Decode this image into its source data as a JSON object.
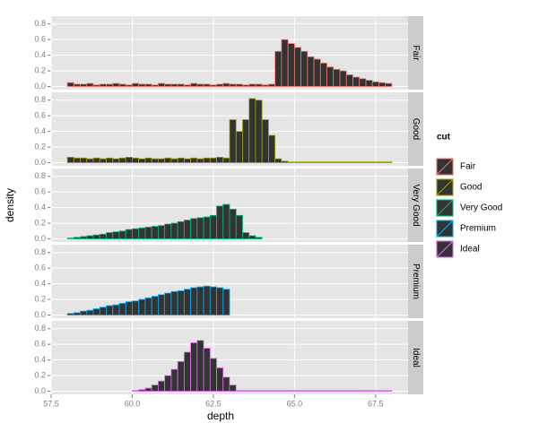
{
  "chart_data": {
    "type": "histogram",
    "x_label": "depth",
    "y_label": "density",
    "legend_title": "cut",
    "bins": [
      58.0,
      58.2,
      58.4,
      58.6,
      58.8,
      59.0,
      59.2,
      59.4,
      59.6,
      59.8,
      60.0,
      60.2,
      60.4,
      60.6,
      60.8,
      61.0,
      61.2,
      61.4,
      61.6,
      61.8,
      62.0,
      62.2,
      62.4,
      62.6,
      62.8,
      63.0,
      63.2,
      63.4,
      63.6,
      63.8,
      64.0,
      64.2,
      64.4,
      64.6,
      64.8,
      65.0,
      65.2,
      65.4,
      65.6,
      65.8,
      66.0,
      66.2,
      66.4,
      66.6,
      66.8,
      67.0,
      67.2,
      67.4,
      67.6,
      67.8,
      68.0
    ],
    "series": [
      {
        "name": "Fair",
        "color": "#F8766D",
        "values": [
          0.05,
          0.03,
          0.03,
          0.04,
          0.02,
          0.03,
          0.03,
          0.04,
          0.03,
          0.02,
          0.04,
          0.03,
          0.03,
          0.02,
          0.04,
          0.03,
          0.03,
          0.03,
          0.02,
          0.04,
          0.03,
          0.03,
          0.02,
          0.03,
          0.04,
          0.03,
          0.03,
          0.02,
          0.03,
          0.03,
          0.02,
          0.03,
          0.45,
          0.6,
          0.55,
          0.5,
          0.45,
          0.38,
          0.35,
          0.3,
          0.25,
          0.22,
          0.2,
          0.15,
          0.12,
          0.1,
          0.08,
          0.06,
          0.05,
          0.04
        ]
      },
      {
        "name": "Good",
        "color": "#A3A500",
        "values": [
          0.07,
          0.06,
          0.06,
          0.05,
          0.06,
          0.05,
          0.06,
          0.05,
          0.06,
          0.07,
          0.06,
          0.05,
          0.06,
          0.05,
          0.05,
          0.06,
          0.05,
          0.06,
          0.05,
          0.06,
          0.05,
          0.06,
          0.06,
          0.07,
          0.06,
          0.55,
          0.4,
          0.55,
          0.82,
          0.8,
          0.55,
          0.35,
          0.05,
          0.02,
          0.01,
          0.01,
          0.01,
          0.01,
          0.01,
          0.01,
          0.01,
          0.01,
          0.01,
          0.01,
          0.01,
          0.01,
          0.01,
          0.01,
          0.01,
          0.01
        ]
      },
      {
        "name": "Very Good",
        "color": "#00BF7D",
        "values": [
          0.01,
          0.02,
          0.03,
          0.04,
          0.05,
          0.06,
          0.08,
          0.09,
          0.1,
          0.12,
          0.13,
          0.14,
          0.15,
          0.16,
          0.17,
          0.19,
          0.2,
          0.22,
          0.24,
          0.26,
          0.27,
          0.28,
          0.3,
          0.42,
          0.44,
          0.38,
          0.3,
          0.08,
          0.04,
          0.02,
          0,
          0,
          0,
          0,
          0,
          0,
          0,
          0,
          0,
          0,
          0,
          0,
          0,
          0,
          0,
          0,
          0,
          0,
          0,
          0
        ]
      },
      {
        "name": "Premium",
        "color": "#00B0F6",
        "values": [
          0.02,
          0.03,
          0.05,
          0.06,
          0.08,
          0.1,
          0.12,
          0.13,
          0.15,
          0.17,
          0.18,
          0.2,
          0.22,
          0.24,
          0.26,
          0.28,
          0.3,
          0.31,
          0.33,
          0.35,
          0.36,
          0.37,
          0.36,
          0.35,
          0.33,
          0,
          0,
          0,
          0,
          0,
          0,
          0,
          0,
          0,
          0,
          0,
          0,
          0,
          0,
          0,
          0,
          0,
          0,
          0,
          0,
          0,
          0,
          0,
          0,
          0
        ]
      },
      {
        "name": "Ideal",
        "color": "#E76BF3",
        "values": [
          0,
          0,
          0,
          0,
          0,
          0,
          0,
          0,
          0,
          0,
          0.01,
          0.02,
          0.04,
          0.08,
          0.13,
          0.2,
          0.28,
          0.38,
          0.5,
          0.62,
          0.65,
          0.55,
          0.42,
          0.3,
          0.18,
          0.08,
          0.01,
          0.01,
          0.01,
          0.01,
          0.01,
          0.01,
          0.01,
          0.01,
          0.01,
          0.01,
          0.01,
          0.01,
          0.01,
          0.01,
          0.01,
          0.01,
          0.01,
          0.01,
          0.01,
          0.01,
          0.01,
          0.01,
          0.01,
          0.01
        ]
      }
    ],
    "xlim": [
      57.5,
      68.5
    ],
    "xticks": [
      57.5,
      {
        "value": 60,
        "label": "60.0"
      },
      62.5,
      {
        "value": 65,
        "label": "65.0"
      },
      67.5
    ],
    "ylim": [
      -0.04,
      0.9
    ],
    "yticks": [
      {
        "value": 0,
        "label": "0.0"
      },
      0.2,
      0.4,
      0.6,
      0.8
    ],
    "grid": true,
    "fill": "#333333",
    "legend": "right"
  }
}
